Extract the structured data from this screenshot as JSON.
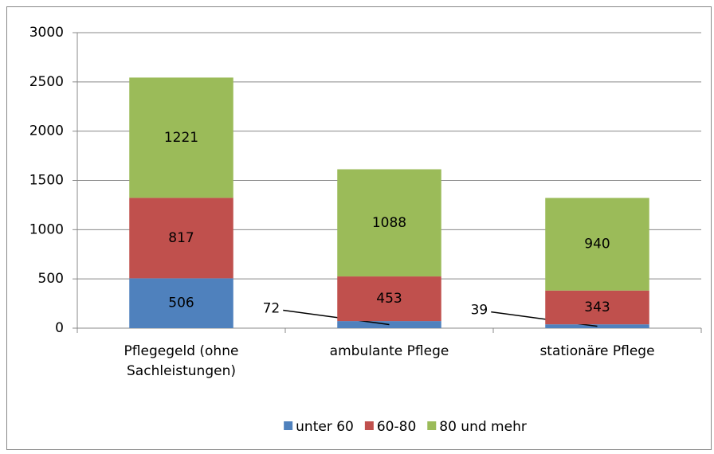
{
  "chart_data": {
    "type": "stacked_bar",
    "categories": [
      "Pflegegeld (ohne Sachleistungen)",
      "ambulante Pflege",
      "stationäre Pflege"
    ],
    "series": [
      {
        "name": "unter 60",
        "color": "#4f81bd",
        "values": [
          506,
          72,
          39
        ]
      },
      {
        "name": "60-80",
        "color": "#c0504d",
        "values": [
          817,
          453,
          343
        ]
      },
      {
        "name": "80 und mehr",
        "color": "#9bbb59",
        "values": [
          1221,
          1088,
          940
        ]
      }
    ],
    "ylim": [
      0,
      3000
    ],
    "yticks": [
      0,
      500,
      1000,
      1500,
      2000,
      2500,
      3000
    ],
    "grid": true,
    "legend": "bottom"
  }
}
